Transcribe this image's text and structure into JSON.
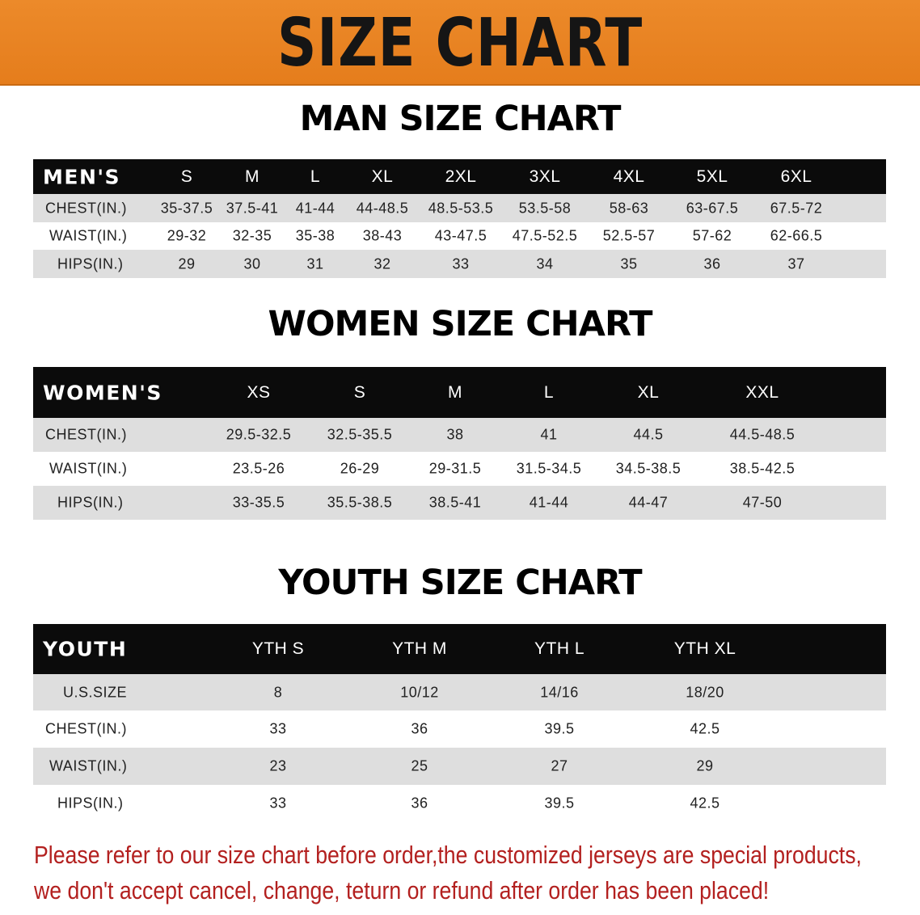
{
  "banner": {
    "title": "SIZE CHART",
    "background": "#e8841f"
  },
  "men": {
    "title": "MAN SIZE CHART",
    "headers": [
      "MEN'S",
      "S",
      "M",
      "L",
      "XL",
      "2XL",
      "3XL",
      "4XL",
      "5XL",
      "6XL"
    ],
    "rows": [
      [
        "CHEST(IN.)",
        "35-37.5",
        "37.5-41",
        "41-44",
        "44-48.5",
        "48.5-53.5",
        "53.5-58",
        "58-63",
        "63-67.5",
        "67.5-72"
      ],
      [
        "WAIST(IN.)",
        "29-32",
        "32-35",
        "35-38",
        "38-43",
        "43-47.5",
        "47.5-52.5",
        "52.5-57",
        "57-62",
        "62-66.5"
      ],
      [
        "HIPS(IN.)",
        "29",
        "30",
        "31",
        "32",
        "33",
        "34",
        "35",
        "36",
        "37"
      ]
    ]
  },
  "women": {
    "title": "WOMEN SIZE CHART",
    "headers": [
      "WOMEN'S",
      "XS",
      "S",
      "M",
      "L",
      "XL",
      "XXL"
    ],
    "rows": [
      [
        "CHEST(IN.)",
        "29.5-32.5",
        "32.5-35.5",
        "38",
        "41",
        "44.5",
        "44.5-48.5"
      ],
      [
        "WAIST(IN.)",
        "23.5-26",
        "26-29",
        "29-31.5",
        "31.5-34.5",
        "34.5-38.5",
        "38.5-42.5"
      ],
      [
        "HIPS(IN.)",
        "33-35.5",
        "35.5-38.5",
        "38.5-41",
        "41-44",
        "44-47",
        "47-50"
      ]
    ]
  },
  "youth": {
    "title": "YOUTH SIZE CHART",
    "headers": [
      "YOUTH",
      "YTH S",
      "YTH M",
      "YTH L",
      "YTH XL"
    ],
    "rows": [
      [
        "U.S.SIZE",
        "8",
        "10/12",
        "14/16",
        "18/20"
      ],
      [
        "CHEST(IN.)",
        "33",
        "36",
        "39.5",
        "42.5"
      ],
      [
        "WAIST(IN.)",
        "23",
        "25",
        "27",
        "29"
      ],
      [
        "HIPS(IN.)",
        "33",
        "36",
        "39.5",
        "42.5"
      ]
    ]
  },
  "footer": {
    "line1": "Please refer to our size chart before order,the customized jerseys are special products,",
    "line2": "we don't accept cancel, change, teturn or refund after order has been placed!",
    "color": "#b3201f"
  }
}
